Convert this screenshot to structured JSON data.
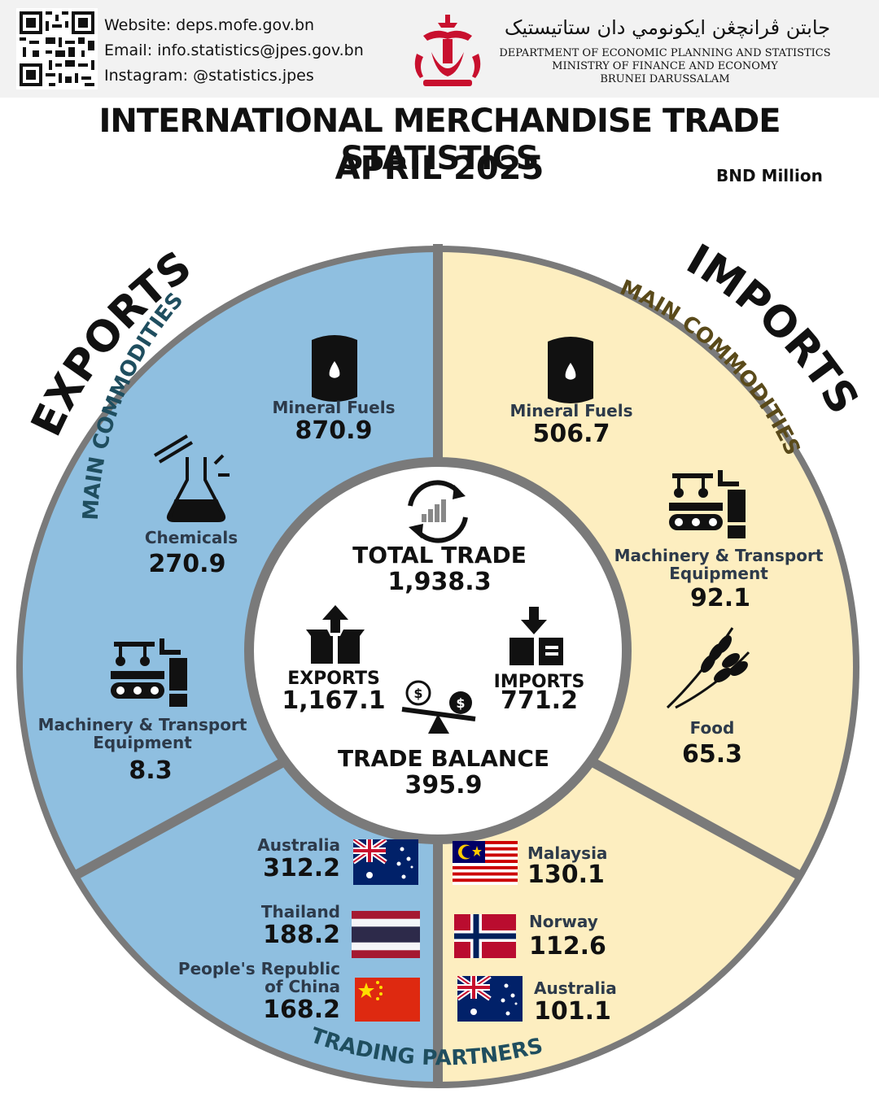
{
  "header": {
    "website": "Website: deps.mofe.gov.bn",
    "email": "Email: info.statistics@jpes.gov.bn",
    "instagram": "Instagram: @statistics.jpes",
    "jawi_name": "جابتن ڤرانچڠن ايکونومي دان ستاتيستيک",
    "department": "DEPARTMENT OF ECONOMIC PLANNING AND STATISTICS",
    "ministry": "MINISTRY OF FINANCE AND ECONOMY",
    "country": "BRUNEI DARUSSALAM"
  },
  "title": "INTERNATIONAL MERCHANDISE TRADE STATISTICS",
  "period": "APRIL 2025",
  "unit": "BND Million",
  "exports_heading": "EXPORTS",
  "imports_heading": "IMPORTS",
  "commodities_heading": "MAIN COMMODITIES",
  "partners_heading": "TRADING PARTNERS",
  "summary": {
    "total_trade_label": "TOTAL TRADE",
    "total_trade": "1,938.3",
    "exports_label": "EXPORTS",
    "exports": "1,167.1",
    "imports_label": "IMPORTS",
    "imports": "771.2",
    "balance_label": "TRADE BALANCE",
    "balance": "395.9"
  },
  "export_commodities": [
    {
      "name": "Mineral Fuels",
      "value": "870.9",
      "icon": "oil-barrel-icon"
    },
    {
      "name": "Chemicals",
      "value": "270.9",
      "icon": "flask-icon"
    },
    {
      "name": "Machinery & Transport Equipment",
      "value": "8.3",
      "icon": "machinery-icon"
    }
  ],
  "import_commodities": [
    {
      "name": "Mineral Fuels",
      "value": "506.7",
      "icon": "oil-barrel-icon"
    },
    {
      "name": "Machinery & Transport Equipment",
      "value": "92.1",
      "icon": "machinery-icon"
    },
    {
      "name": "Food",
      "value": "65.3",
      "icon": "wheat-icon"
    }
  ],
  "export_partners": [
    {
      "name": "Australia",
      "value": "312.2",
      "icon": "australia-flag-icon"
    },
    {
      "name": "Thailand",
      "value": "188.2",
      "icon": "thailand-flag-icon"
    },
    {
      "name": "People's Republic of China",
      "value": "168.2",
      "icon": "china-flag-icon"
    }
  ],
  "import_partners": [
    {
      "name": "Malaysia",
      "value": "130.1",
      "icon": "malaysia-flag-icon"
    },
    {
      "name": "Norway",
      "value": "112.6",
      "icon": "norway-flag-icon"
    },
    {
      "name": "Australia",
      "value": "101.1",
      "icon": "australia-flag-icon"
    }
  ],
  "colors": {
    "exports": "#8fbfe0",
    "imports": "#fdeec0",
    "ring": "#6b6b6b"
  }
}
